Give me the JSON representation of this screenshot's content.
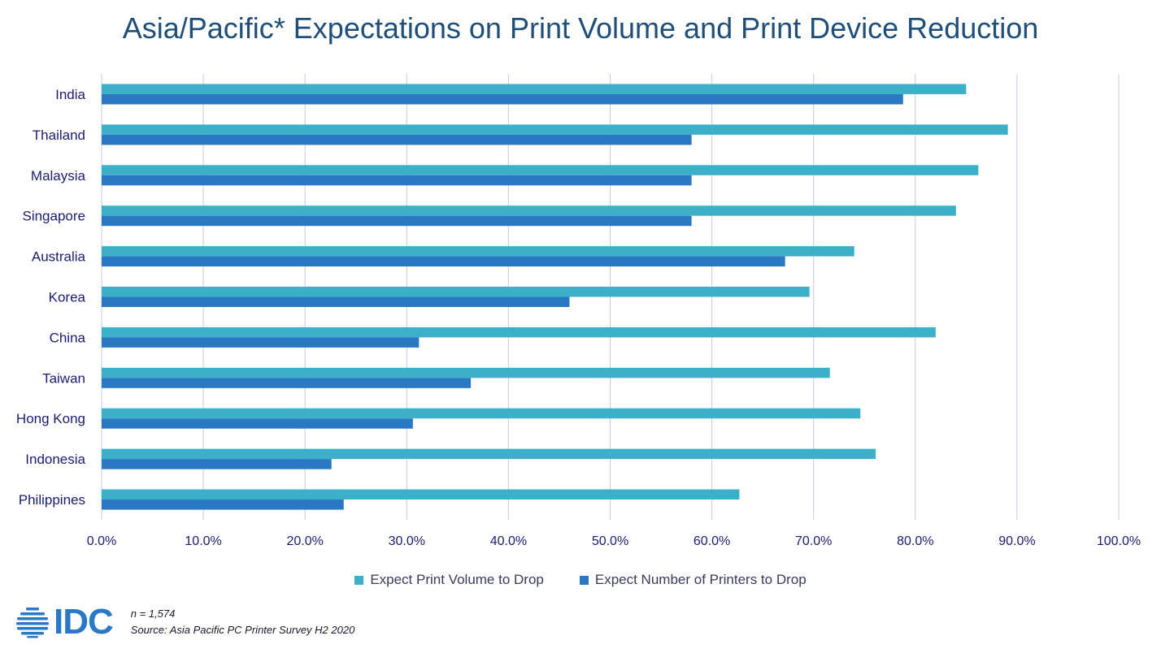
{
  "title": "Asia/Pacific* Expectations on Print Volume and Print Device Reduction",
  "colors": {
    "series1": "#3cb0c9",
    "series2": "#2a78c2",
    "grid": "#c9c9e2",
    "tick": "#1c1c6e"
  },
  "chart_data": {
    "type": "bar",
    "orientation": "horizontal",
    "categories": [
      "India",
      "Thailand",
      "Malaysia",
      "Singapore",
      "Australia",
      "Korea",
      "China",
      "Taiwan",
      "Hong Kong",
      "Indonesia",
      "Philippines"
    ],
    "series": [
      {
        "name": "Expect Print Volume to Drop",
        "values": [
          85.0,
          89.1,
          86.2,
          84.0,
          74.0,
          69.6,
          82.0,
          71.6,
          74.6,
          76.1,
          62.7
        ]
      },
      {
        "name": "Expect Number of Printers to Drop",
        "values": [
          78.8,
          58.0,
          58.0,
          58.0,
          67.2,
          46.0,
          31.2,
          36.3,
          30.6,
          22.6,
          23.8
        ]
      }
    ],
    "x_ticks": [
      "0.0%",
      "10.0%",
      "20.0%",
      "30.0%",
      "40.0%",
      "50.0%",
      "60.0%",
      "70.0%",
      "80.0%",
      "90.0%",
      "100.0%"
    ],
    "xlim": [
      0,
      100
    ],
    "grid": true,
    "legend_position": "bottom"
  },
  "logo": {
    "text": "IDC"
  },
  "notes": {
    "n": "n = 1,574",
    "source": "Source: Asia Pacific PC Printer Survey H2 2020"
  }
}
